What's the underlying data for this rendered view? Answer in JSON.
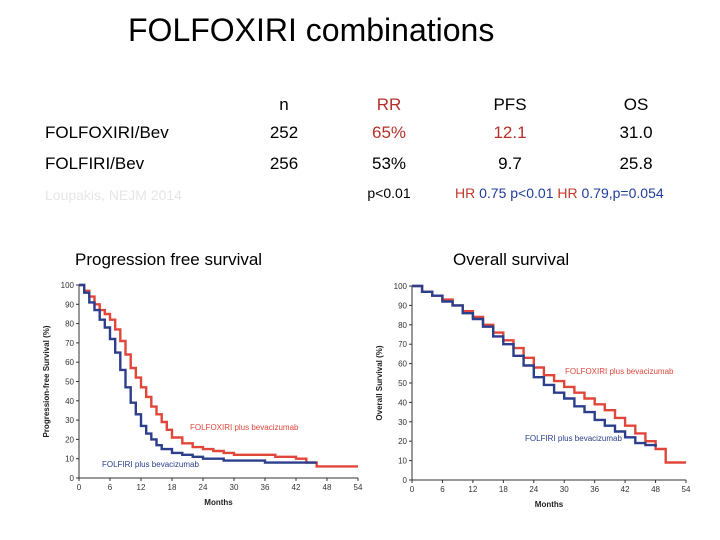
{
  "slide": {
    "title": "FOLFOXIRI combinations",
    "table": {
      "headers": [
        "n",
        "RR",
        "PFS",
        "OS"
      ],
      "rows": [
        {
          "label": "FOLFOXIRI/Bev",
          "n": "252",
          "rr": "65%",
          "pfs": "12.1",
          "os": "31.0"
        },
        {
          "label": "FOLFIRI/Bev",
          "n": "256",
          "rr": "53%",
          "pfs": "9.7",
          "os": "25.8"
        }
      ],
      "citation": "Loupakis, NEJM 2014",
      "rr_p": "p<0.01",
      "pfs_stats": {
        "hr_label": "HR",
        "hr_value": "0.75",
        "p": "p<0.01"
      },
      "os_stats": {
        "hr_label": "HR",
        "hr_value": "0.79,",
        "p": "p=0.054"
      }
    },
    "colors": {
      "red": "#e0473a",
      "blue": "#2b3f8c",
      "rr_color": "#b5302a",
      "hr_color": "#c0392b",
      "stat_blue": "#1f3d99"
    },
    "pfs_panel": {
      "title": "Progression free survival"
    },
    "os_panel": {
      "title": "Overall survival"
    }
  },
  "chart_data": [
    {
      "type": "line",
      "title": "Progression free survival",
      "xlabel": "Months",
      "ylabel": "Progression-free Survival (%)",
      "xlim": [
        0,
        54
      ],
      "ylim": [
        0,
        100
      ],
      "xticks": [
        0,
        6,
        12,
        18,
        24,
        30,
        36,
        42,
        48,
        54
      ],
      "yticks": [
        0,
        10,
        20,
        30,
        40,
        50,
        60,
        70,
        80,
        90,
        100
      ],
      "series": [
        {
          "name": "FOLFOXIRI plus bevacizumab",
          "color": "#e0473a",
          "x": [
            0,
            1,
            2,
            3,
            4,
            5,
            6,
            7,
            8,
            9,
            10,
            11,
            12,
            13,
            14,
            15,
            16,
            17,
            18,
            20,
            22,
            24,
            26,
            28,
            30,
            34,
            38,
            42,
            44,
            46,
            54
          ],
          "y": [
            100,
            97,
            94,
            90,
            87,
            85,
            82,
            77,
            71,
            64,
            57,
            52,
            47,
            42,
            37,
            33,
            29,
            25,
            21,
            18,
            16,
            15,
            14,
            13,
            12,
            12,
            11,
            10,
            8,
            6,
            6
          ]
        },
        {
          "name": "FOLFIRI plus bevacizumab",
          "color": "#2b3f8c",
          "x": [
            0,
            1,
            2,
            3,
            4,
            5,
            6,
            7,
            8,
            9,
            10,
            11,
            12,
            13,
            14,
            15,
            16,
            18,
            20,
            22,
            24,
            28,
            32,
            36,
            40,
            44,
            46
          ],
          "y": [
            100,
            96,
            91,
            87,
            82,
            78,
            72,
            65,
            56,
            47,
            39,
            33,
            27,
            23,
            20,
            17,
            15,
            13,
            12,
            11,
            10,
            9,
            9,
            8,
            8,
            8,
            8
          ]
        }
      ],
      "annotations": [
        "FOLFOXIRI plus bevacizumab",
        "FOLFIRI plus bevacizumab"
      ]
    },
    {
      "type": "line",
      "title": "Overall survival",
      "xlabel": "Months",
      "ylabel": "Overall Survival (%)",
      "xlim": [
        0,
        54
      ],
      "ylim": [
        0,
        100
      ],
      "xticks": [
        0,
        6,
        12,
        18,
        24,
        30,
        36,
        42,
        48,
        54
      ],
      "yticks": [
        0,
        10,
        20,
        30,
        40,
        50,
        60,
        70,
        80,
        90,
        100
      ],
      "series": [
        {
          "name": "FOLFOXIRI plus bevacizumab",
          "color": "#e0473a",
          "x": [
            0,
            2,
            4,
            6,
            8,
            10,
            12,
            14,
            16,
            18,
            20,
            22,
            24,
            26,
            28,
            30,
            32,
            34,
            36,
            38,
            40,
            42,
            44,
            46,
            48,
            50,
            54
          ],
          "y": [
            100,
            97,
            95,
            93,
            90,
            87,
            84,
            80,
            76,
            72,
            68,
            63,
            58,
            54,
            51,
            48,
            45,
            42,
            39,
            36,
            32,
            28,
            24,
            20,
            16,
            9,
            9
          ]
        },
        {
          "name": "FOLFIRI plus bevacizumab",
          "color": "#2b3f8c",
          "x": [
            0,
            2,
            4,
            6,
            8,
            10,
            12,
            14,
            16,
            18,
            20,
            22,
            24,
            26,
            28,
            30,
            32,
            34,
            36,
            38,
            40,
            42,
            44,
            46,
            48
          ],
          "y": [
            100,
            97,
            95,
            92,
            90,
            86,
            83,
            79,
            74,
            70,
            64,
            59,
            53,
            49,
            45,
            42,
            38,
            35,
            31,
            28,
            25,
            22,
            19,
            18,
            17
          ]
        }
      ],
      "annotations": [
        "FOLFOXIRI plus bevacizumab",
        "FOLFIRI plus bevacizumab"
      ]
    }
  ]
}
